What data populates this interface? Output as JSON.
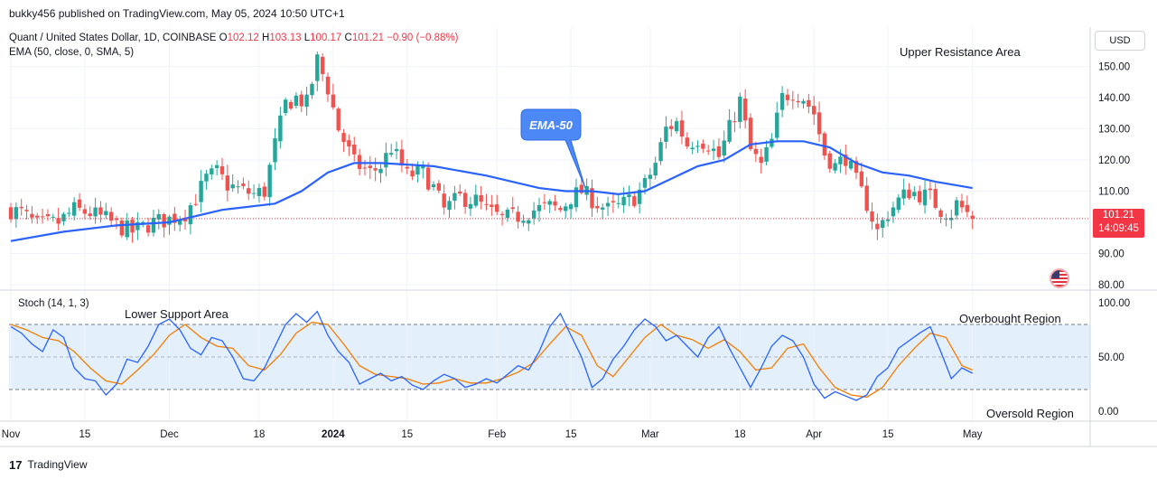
{
  "header": {
    "publisher": "bukky456 published on TradingView.com, May 05, 2024 10:50 UTC+1"
  },
  "legend": {
    "symbol": "Quant / United States Dollar, 1D, COINBASE",
    "o_label": "O",
    "o_value": "102.12",
    "h_label": "H",
    "h_value": "103.13",
    "l_label": "L",
    "l_value": "100.17",
    "c_label": "C",
    "c_value": "101.21",
    "change": "−0.90 (−0.88%)",
    "ema": "EMA (50, close, 0, SMA, 5)",
    "stoch": "Stoch (14, 1, 3)"
  },
  "annotations": {
    "upper_resistance": "Upper Resistance Area",
    "lower_support": "Lower Support Area",
    "ema_callout": "EMA-50",
    "overbought": "Overbought Region",
    "oversold": "Oversold Region"
  },
  "price_axis": {
    "currency": "USD",
    "last_price": "101.21",
    "countdown": "14:09:45"
  },
  "footer": {
    "logo": "17",
    "brand": "TradingView"
  },
  "colors": {
    "up": "#26a69a",
    "down": "#ef5350",
    "ema": "#2962ff",
    "stoch_k": "#2962ff",
    "stoch_d": "#f57c00",
    "band": "#e3f0fc",
    "price_line": "#f23645"
  },
  "icons": {
    "flag": "us-flag-icon",
    "logo": "tradingview-logo-icon"
  },
  "chart_data": [
    {
      "type": "candlestick",
      "title": "Quant / United States Dollar, 1D, COINBASE",
      "ylim": [
        80,
        155
      ],
      "y_ticks": [
        "150.00",
        "140.00",
        "130.00",
        "120.00",
        "110.00",
        "90.00",
        "80.00"
      ],
      "y_tick_values": [
        150,
        140,
        130,
        120,
        110,
        90,
        80
      ],
      "x_ticks": [
        "Nov",
        "15",
        "Dec",
        "18",
        "2024",
        "15",
        "Feb",
        "15",
        "Mar",
        "18",
        "Apr",
        "15",
        "May"
      ],
      "x_tick_days": [
        0,
        14,
        30,
        47,
        61,
        75,
        92,
        106,
        121,
        138,
        152,
        166,
        182
      ],
      "date_range": [
        "2023-10-31",
        "2024-05-05"
      ],
      "close_anchors": [
        [
          0,
          104
        ],
        [
          2,
          103
        ],
        [
          5,
          99
        ],
        [
          9,
          100
        ],
        [
          12,
          104
        ],
        [
          15,
          103
        ],
        [
          18,
          101
        ],
        [
          20,
          99
        ],
        [
          23,
          97
        ],
        [
          27,
          100
        ],
        [
          30,
          101
        ],
        [
          33,
          103
        ],
        [
          35,
          108
        ],
        [
          37,
          114
        ],
        [
          39,
          116
        ],
        [
          41,
          112
        ],
        [
          44,
          110
        ],
        [
          46,
          109
        ],
        [
          48,
          110
        ],
        [
          50,
          125
        ],
        [
          52,
          138
        ],
        [
          54,
          140
        ],
        [
          56,
          138
        ],
        [
          58,
          152
        ],
        [
          60,
          143
        ],
        [
          62,
          130
        ],
        [
          65,
          119
        ],
        [
          68,
          116
        ],
        [
          70,
          118
        ],
        [
          72,
          124
        ],
        [
          75,
          115
        ],
        [
          78,
          116
        ],
        [
          80,
          111
        ],
        [
          82,
          104
        ],
        [
          85,
          108
        ],
        [
          88,
          107
        ],
        [
          90,
          104
        ],
        [
          93,
          101
        ],
        [
          96,
          102
        ],
        [
          99,
          104
        ],
        [
          102,
          105
        ],
        [
          104,
          104
        ],
        [
          106,
          108
        ],
        [
          108,
          110
        ],
        [
          111,
          106
        ],
        [
          113,
          104
        ],
        [
          115,
          105
        ],
        [
          118,
          108
        ],
        [
          120,
          112
        ],
        [
          122,
          119
        ],
        [
          124,
          130
        ],
        [
          126,
          132
        ],
        [
          128,
          125
        ],
        [
          130,
          127
        ],
        [
          132,
          125
        ],
        [
          134,
          121
        ],
        [
          136,
          130
        ],
        [
          138,
          139
        ],
        [
          140,
          123
        ],
        [
          142,
          118
        ],
        [
          144,
          126
        ],
        [
          146,
          140
        ],
        [
          148,
          142
        ],
        [
          150,
          140
        ],
        [
          152,
          135
        ],
        [
          154,
          122
        ],
        [
          156,
          118
        ],
        [
          158,
          121
        ],
        [
          160,
          113
        ],
        [
          162,
          106
        ],
        [
          164,
          97
        ],
        [
          166,
          103
        ],
        [
          168,
          107
        ],
        [
          170,
          110
        ],
        [
          172,
          109
        ],
        [
          174,
          108
        ],
        [
          176,
          104
        ],
        [
          178,
          103
        ],
        [
          179,
          106
        ],
        [
          181,
          103
        ],
        [
          182,
          101.21
        ]
      ],
      "last_close": 101.21
    },
    {
      "type": "line",
      "title": "EMA (50, close, 0, SMA, 5)",
      "points": [
        [
          0,
          94
        ],
        [
          10,
          97
        ],
        [
          20,
          99
        ],
        [
          30,
          100
        ],
        [
          40,
          104
        ],
        [
          50,
          106
        ],
        [
          55,
          110
        ],
        [
          60,
          116
        ],
        [
          65,
          119
        ],
        [
          70,
          119
        ],
        [
          80,
          118
        ],
        [
          90,
          115
        ],
        [
          100,
          111
        ],
        [
          105,
          110
        ],
        [
          110,
          110
        ],
        [
          115,
          109
        ],
        [
          120,
          110
        ],
        [
          125,
          114
        ],
        [
          130,
          118
        ],
        [
          135,
          120
        ],
        [
          140,
          125
        ],
        [
          145,
          126
        ],
        [
          150,
          126
        ],
        [
          155,
          124
        ],
        [
          160,
          119
        ],
        [
          165,
          116
        ],
        [
          170,
          115
        ],
        [
          175,
          113
        ],
        [
          182,
          111
        ]
      ]
    },
    {
      "type": "line",
      "title": "Stoch (14, 1, 3)",
      "ylim": [
        0,
        100
      ],
      "y_ticks": [
        "100.00",
        "50.00",
        "0.00"
      ],
      "y_tick_values": [
        100,
        50,
        0
      ],
      "bands": [
        80,
        20
      ],
      "k_anchors": [
        [
          0,
          78
        ],
        [
          2,
          72
        ],
        [
          4,
          62
        ],
        [
          6,
          55
        ],
        [
          8,
          75
        ],
        [
          10,
          68
        ],
        [
          12,
          40
        ],
        [
          14,
          30
        ],
        [
          16,
          28
        ],
        [
          18,
          15
        ],
        [
          20,
          25
        ],
        [
          22,
          48
        ],
        [
          24,
          45
        ],
        [
          26,
          60
        ],
        [
          28,
          80
        ],
        [
          30,
          85
        ],
        [
          32,
          75
        ],
        [
          34,
          58
        ],
        [
          36,
          52
        ],
        [
          38,
          68
        ],
        [
          40,
          65
        ],
        [
          42,
          50
        ],
        [
          44,
          30
        ],
        [
          46,
          28
        ],
        [
          48,
          40
        ],
        [
          50,
          60
        ],
        [
          52,
          80
        ],
        [
          54,
          90
        ],
        [
          56,
          82
        ],
        [
          58,
          92
        ],
        [
          60,
          70
        ],
        [
          62,
          55
        ],
        [
          64,
          45
        ],
        [
          66,
          25
        ],
        [
          68,
          30
        ],
        [
          70,
          35
        ],
        [
          72,
          28
        ],
        [
          74,
          32
        ],
        [
          76,
          24
        ],
        [
          78,
          20
        ],
        [
          80,
          28
        ],
        [
          82,
          34
        ],
        [
          84,
          30
        ],
        [
          86,
          22
        ],
        [
          88,
          25
        ],
        [
          90,
          30
        ],
        [
          92,
          26
        ],
        [
          94,
          34
        ],
        [
          96,
          42
        ],
        [
          98,
          38
        ],
        [
          100,
          55
        ],
        [
          102,
          78
        ],
        [
          104,
          90
        ],
        [
          106,
          70
        ],
        [
          108,
          50
        ],
        [
          110,
          22
        ],
        [
          112,
          30
        ],
        [
          114,
          48
        ],
        [
          116,
          60
        ],
        [
          118,
          75
        ],
        [
          120,
          85
        ],
        [
          122,
          78
        ],
        [
          124,
          65
        ],
        [
          126,
          70
        ],
        [
          128,
          60
        ],
        [
          130,
          50
        ],
        [
          132,
          68
        ],
        [
          134,
          78
        ],
        [
          136,
          58
        ],
        [
          138,
          40
        ],
        [
          140,
          22
        ],
        [
          142,
          40
        ],
        [
          144,
          60
        ],
        [
          146,
          70
        ],
        [
          148,
          65
        ],
        [
          150,
          50
        ],
        [
          152,
          25
        ],
        [
          154,
          12
        ],
        [
          156,
          18
        ],
        [
          158,
          14
        ],
        [
          160,
          10
        ],
        [
          162,
          15
        ],
        [
          164,
          32
        ],
        [
          166,
          40
        ],
        [
          168,
          58
        ],
        [
          170,
          65
        ],
        [
          172,
          72
        ],
        [
          174,
          78
        ],
        [
          176,
          55
        ],
        [
          178,
          30
        ],
        [
          180,
          40
        ],
        [
          182,
          35
        ]
      ],
      "d_anchors": [
        [
          0,
          80
        ],
        [
          3,
          75
        ],
        [
          6,
          68
        ],
        [
          9,
          65
        ],
        [
          12,
          55
        ],
        [
          15,
          40
        ],
        [
          18,
          28
        ],
        [
          21,
          25
        ],
        [
          24,
          38
        ],
        [
          27,
          52
        ],
        [
          30,
          70
        ],
        [
          33,
          80
        ],
        [
          36,
          68
        ],
        [
          39,
          60
        ],
        [
          42,
          58
        ],
        [
          45,
          42
        ],
        [
          48,
          38
        ],
        [
          51,
          52
        ],
        [
          54,
          72
        ],
        [
          57,
          82
        ],
        [
          60,
          80
        ],
        [
          63,
          62
        ],
        [
          66,
          42
        ],
        [
          69,
          34
        ],
        [
          72,
          32
        ],
        [
          75,
          30
        ],
        [
          78,
          25
        ],
        [
          81,
          26
        ],
        [
          84,
          30
        ],
        [
          87,
          26
        ],
        [
          90,
          26
        ],
        [
          93,
          30
        ],
        [
          96,
          36
        ],
        [
          99,
          45
        ],
        [
          102,
          62
        ],
        [
          105,
          78
        ],
        [
          108,
          70
        ],
        [
          111,
          42
        ],
        [
          114,
          32
        ],
        [
          117,
          50
        ],
        [
          120,
          68
        ],
        [
          123,
          80
        ],
        [
          126,
          70
        ],
        [
          129,
          66
        ],
        [
          132,
          58
        ],
        [
          135,
          66
        ],
        [
          138,
          55
        ],
        [
          141,
          38
        ],
        [
          144,
          40
        ],
        [
          147,
          58
        ],
        [
          150,
          62
        ],
        [
          153,
          40
        ],
        [
          156,
          22
        ],
        [
          159,
          15
        ],
        [
          162,
          13
        ],
        [
          165,
          22
        ],
        [
          168,
          42
        ],
        [
          171,
          58
        ],
        [
          174,
          72
        ],
        [
          177,
          68
        ],
        [
          180,
          42
        ],
        [
          182,
          38
        ]
      ]
    }
  ]
}
